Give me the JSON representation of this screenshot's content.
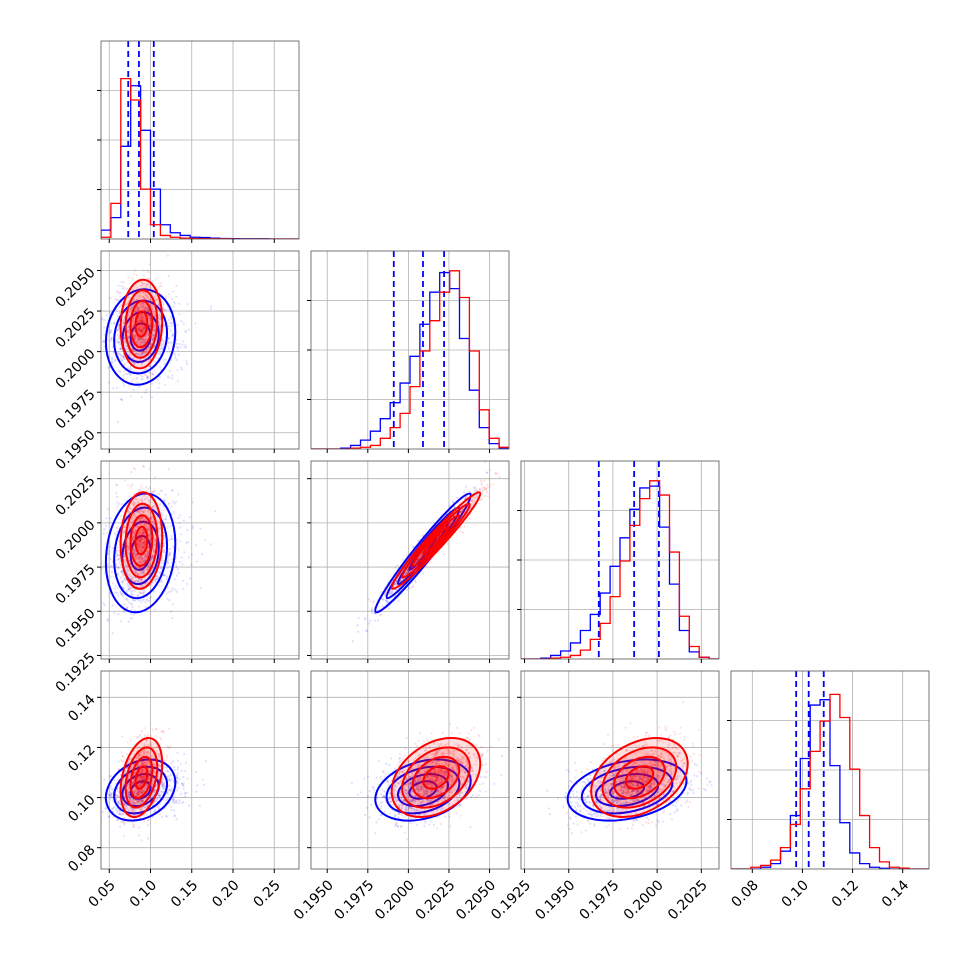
{
  "chart_data": {
    "type": "corner",
    "colors": {
      "a": "#0000ff",
      "b": "#ff0000",
      "grid": "#b0b0b0",
      "frame": "#000000"
    },
    "grid": true,
    "params": [
      {
        "range": [
          0.04,
          0.28
        ],
        "ticks": [
          0.05,
          0.1,
          0.15,
          0.2,
          0.25
        ],
        "tick_labels": [
          "0.05",
          "0.10",
          "0.15",
          "0.20",
          "0.25"
        ]
      },
      {
        "range": [
          0.194,
          0.2062
        ],
        "ticks": [
          0.195,
          0.1975,
          0.2,
          0.2025,
          0.205
        ],
        "tick_labels": [
          "0.1950",
          "0.1975",
          "0.2000",
          "0.2025",
          "0.2050"
        ]
      },
      {
        "range": [
          0.1923,
          0.2035
        ],
        "ticks": [
          0.1925,
          0.195,
          0.1975,
          0.2,
          0.2025
        ],
        "tick_labels": [
          "0.1925",
          "0.1950",
          "0.1975",
          "0.2000",
          "0.2025"
        ]
      },
      {
        "range": [
          0.0715,
          0.1505
        ],
        "ticks": [
          0.08,
          0.1,
          0.12,
          0.14
        ],
        "tick_labels": [
          "0.08",
          "0.10",
          "0.12",
          "0.14"
        ]
      }
    ],
    "series": [
      {
        "color": "#0000ff",
        "mean": [
          0.088,
          0.2009,
          0.1983,
          0.103
        ],
        "std": [
          0.02,
          0.0014,
          0.0016,
          0.0058
        ],
        "corr": [
          [
            1,
            0.1,
            0.15,
            0.25
          ],
          [
            0.1,
            1,
            0.97,
            0.3
          ],
          [
            0.15,
            0.97,
            1,
            0.3
          ],
          [
            0.25,
            0.3,
            0.3,
            1
          ]
        ],
        "quantiles": [
          [
            0.073,
            0.086,
            0.104
          ],
          [
            0.1991,
            0.2009,
            0.2022
          ],
          [
            0.1967,
            0.1987,
            0.2001
          ],
          [
            0.0975,
            0.1025,
            0.1085
          ]
        ],
        "histograms": [
          [
            0.04,
            0.28,
            [
              0.05,
              0.12,
              0.52,
              0.86,
              0.61,
              0.28,
              0.08,
              0.035,
              0.02,
              0.01,
              0.008,
              0.005,
              0.003,
              0.002,
              0.001,
              0.001,
              0.001,
              0,
              0,
              0
            ]
          ],
          [
            0.194,
            0.2062,
            [
              0,
              0,
              0,
              0.005,
              0.02,
              0.05,
              0.1,
              0.17,
              0.26,
              0.37,
              0.52,
              0.7,
              0.88,
              0.99,
              0.9,
              0.62,
              0.33,
              0.12,
              0.03,
              0.005
            ]
          ],
          [
            0.1923,
            0.2035,
            [
              0,
              0,
              0.005,
              0.02,
              0.045,
              0.09,
              0.16,
              0.25,
              0.37,
              0.52,
              0.68,
              0.84,
              0.96,
              0.97,
              0.74,
              0.42,
              0.16,
              0.04,
              0.01,
              0
            ]
          ],
          [
            0.0715,
            0.1505,
            [
              0,
              0,
              0,
              0.01,
              0.03,
              0.1,
              0.3,
              0.62,
              0.92,
              0.95,
              0.58,
              0.26,
              0.09,
              0.03,
              0.01,
              0.004,
              0,
              0,
              0,
              0
            ]
          ]
        ]
      },
      {
        "color": "#ff0000",
        "mean": [
          0.089,
          0.2017,
          0.199,
          0.108
        ],
        "std": [
          0.012,
          0.0013,
          0.0013,
          0.0075
        ],
        "corr": [
          [
            1,
            0.08,
            0.08,
            0.35
          ],
          [
            0.08,
            1,
            0.97,
            0.35
          ],
          [
            0.08,
            0.97,
            1,
            0.35
          ],
          [
            0.35,
            0.35,
            0.35,
            1
          ]
        ],
        "quantiles": [],
        "histograms": [
          [
            0.04,
            0.28,
            [
              0.01,
              0.2,
              0.9,
              0.78,
              0.28,
              0.08,
              0.02,
              0.01,
              0.005,
              0.003,
              0.002,
              0.001,
              0.001,
              0,
              0,
              0,
              0,
              0,
              0,
              0
            ]
          ],
          [
            0.194,
            0.2062,
            [
              0,
              0,
              0,
              0,
              0.005,
              0.01,
              0.02,
              0.06,
              0.12,
              0.2,
              0.35,
              0.55,
              0.72,
              0.88,
              1.0,
              0.85,
              0.55,
              0.22,
              0.06,
              0.01
            ]
          ],
          [
            0.1923,
            0.2035,
            [
              0,
              0,
              0,
              0.005,
              0.01,
              0.02,
              0.05,
              0.11,
              0.2,
              0.35,
              0.55,
              0.75,
              0.9,
              1.0,
              0.92,
              0.6,
              0.24,
              0.07,
              0.01,
              0
            ]
          ],
          [
            0.0715,
            0.1505,
            [
              0,
              0,
              0.01,
              0.02,
              0.05,
              0.12,
              0.25,
              0.45,
              0.66,
              0.83,
              0.98,
              0.85,
              0.56,
              0.3,
              0.12,
              0.04,
              0.01,
              0.005,
              0,
              0
            ]
          ]
        ]
      }
    ]
  }
}
